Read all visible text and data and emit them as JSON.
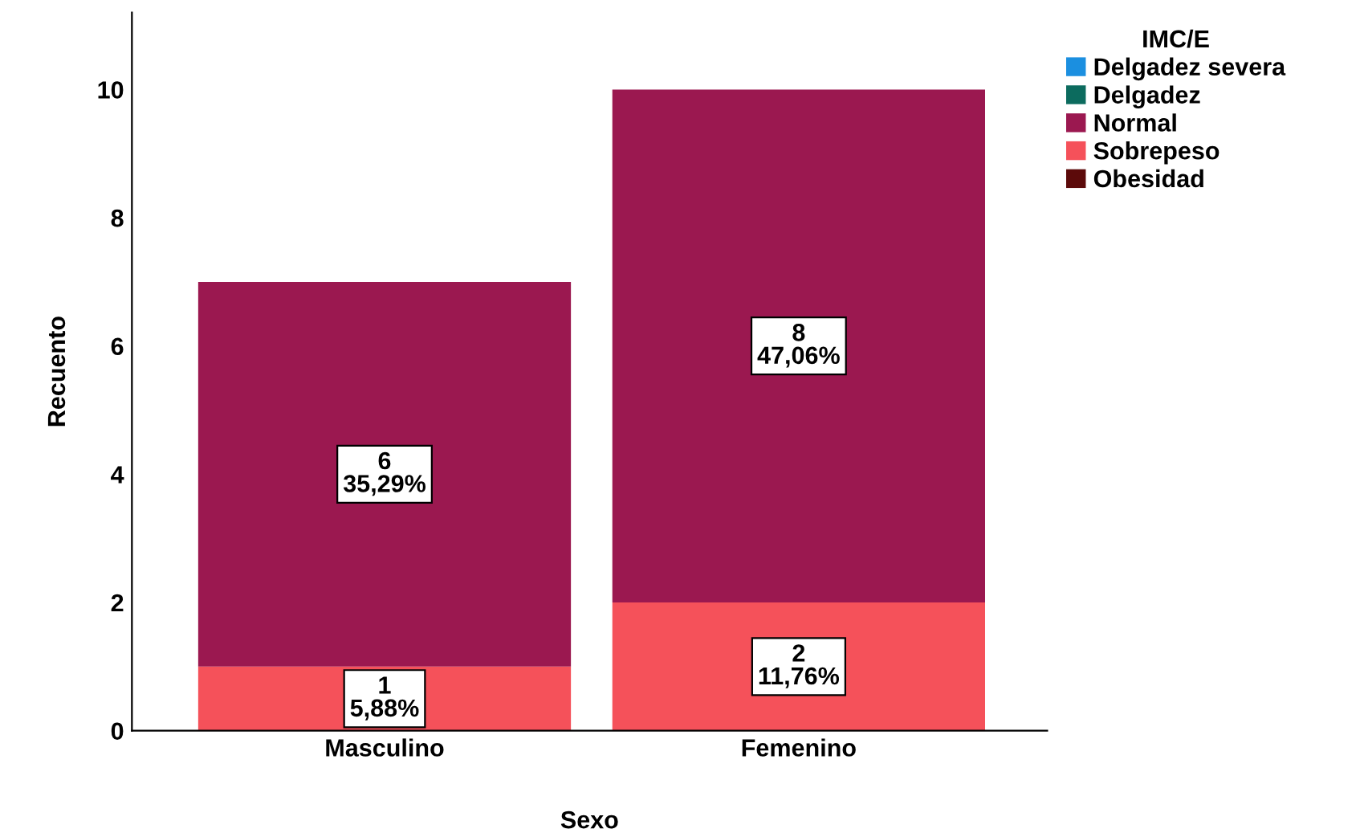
{
  "chart_data": {
    "type": "bar",
    "stacked": true,
    "xlabel": "Sexo",
    "ylabel": "Recuento",
    "legend_title": "IMC/E",
    "legend": "right",
    "grid": false,
    "categories": [
      "Masculino",
      "Femenino"
    ],
    "ylim": [
      0,
      11.2
    ],
    "yticks": [
      0,
      2,
      4,
      6,
      8,
      10
    ],
    "series": [
      {
        "name": "Obesidad",
        "color": "#5c0a0a",
        "values": [
          0,
          0
        ],
        "value_labels": [
          null,
          null
        ]
      },
      {
        "name": "Sobrepeso",
        "color": "#f5515a",
        "values": [
          1,
          2
        ],
        "value_labels": [
          "1\n5,88%",
          "2\n11,76%"
        ]
      },
      {
        "name": "Normal",
        "color": "#9b1850",
        "values": [
          6,
          8
        ],
        "value_labels": [
          "6\n35,29%",
          "8\n47,06%"
        ]
      },
      {
        "name": "Delgadez",
        "color": "#0c6b5e",
        "values": [
          0,
          0
        ],
        "value_labels": [
          null,
          null
        ]
      },
      {
        "name": "Delgadez severa",
        "color": "#1b8fe0",
        "values": [
          0,
          0
        ],
        "value_labels": [
          null,
          null
        ]
      }
    ]
  }
}
